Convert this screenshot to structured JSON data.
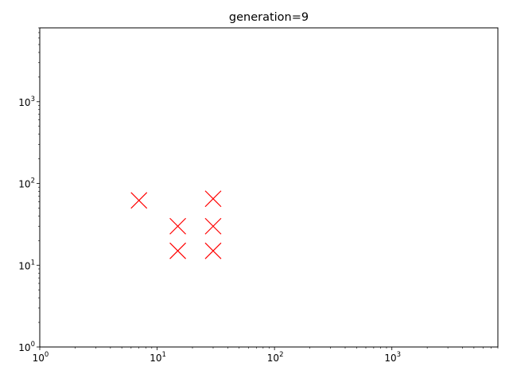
{
  "chart_data": {
    "type": "scatter",
    "title": "generation=9",
    "xlabel": "",
    "ylabel": "",
    "xscale": "log",
    "yscale": "log",
    "xlim": [
      1,
      8000
    ],
    "ylim": [
      1,
      8000
    ],
    "grid": false,
    "marker": "x",
    "marker_color": "#ff0000",
    "x_ticks": [
      {
        "base": "10",
        "exp": "0",
        "value": 1
      },
      {
        "base": "10",
        "exp": "1",
        "value": 10
      },
      {
        "base": "10",
        "exp": "2",
        "value": 100
      },
      {
        "base": "10",
        "exp": "3",
        "value": 1000
      }
    ],
    "y_ticks": [
      {
        "base": "10",
        "exp": "0",
        "value": 1
      },
      {
        "base": "10",
        "exp": "1",
        "value": 10
      },
      {
        "base": "10",
        "exp": "2",
        "value": 100
      },
      {
        "base": "10",
        "exp": "3",
        "value": 1000
      }
    ],
    "points": [
      {
        "x": 7,
        "y": 62
      },
      {
        "x": 15,
        "y": 30
      },
      {
        "x": 15,
        "y": 15
      },
      {
        "x": 30,
        "y": 65
      },
      {
        "x": 30,
        "y": 30
      },
      {
        "x": 30,
        "y": 15
      }
    ]
  }
}
